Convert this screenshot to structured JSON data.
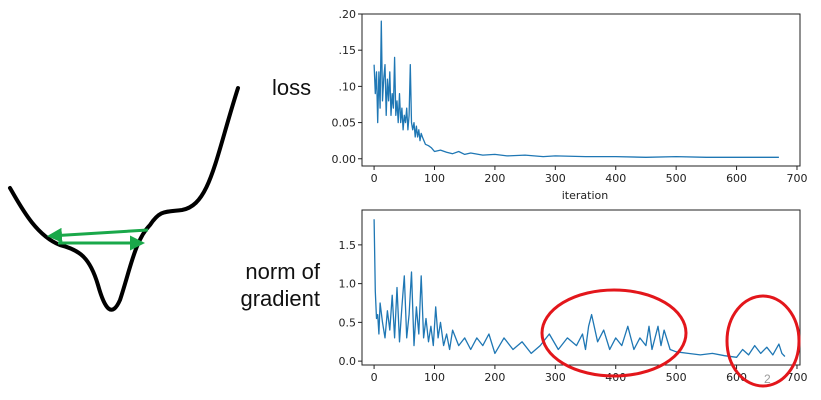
{
  "labels": {
    "loss": "loss",
    "norm_line1": "norm of",
    "norm_line2": "gradient",
    "slide_number": "2"
  },
  "colors": {
    "series": "#1f77b4",
    "highlight": "#e3161b",
    "arrows": "#1aa84a",
    "curve": "#000000"
  },
  "diagram": {
    "shape": "loss-landscape-valley",
    "arrows": [
      "left-arrow",
      "right-arrow"
    ]
  },
  "chart_data": [
    {
      "type": "line",
      "title": "",
      "xlabel": "iteration",
      "ylabel": "",
      "xlim": [
        -20,
        705
      ],
      "ylim": [
        -0.01,
        0.2
      ],
      "xticks": [
        0,
        100,
        200,
        300,
        400,
        500,
        600,
        700
      ],
      "yticks": [
        0.0,
        0.05,
        0.1,
        0.15,
        0.2
      ],
      "ytick_labels": [
        "0.00",
        "0.05",
        ".10",
        ".15",
        ".20"
      ],
      "grid": false,
      "series": [
        {
          "x": [
            0,
            2,
            4,
            6,
            8,
            10,
            12,
            14,
            16,
            18,
            20,
            22,
            24,
            26,
            28,
            30,
            32,
            34,
            36,
            38,
            40,
            42,
            44,
            46,
            48,
            50,
            52,
            54,
            56,
            58,
            60,
            62,
            64,
            66,
            68,
            70,
            72,
            74,
            76,
            78,
            80,
            85,
            90,
            95,
            100,
            110,
            120,
            130,
            140,
            150,
            160,
            180,
            200,
            220,
            250,
            280,
            300,
            350,
            400,
            450,
            500,
            550,
            600,
            650,
            670
          ],
          "y": [
            0.13,
            0.09,
            0.12,
            0.05,
            0.12,
            0.07,
            0.19,
            0.08,
            0.11,
            0.13,
            0.06,
            0.11,
            0.08,
            0.12,
            0.06,
            0.09,
            0.07,
            0.14,
            0.06,
            0.08,
            0.05,
            0.09,
            0.05,
            0.07,
            0.04,
            0.06,
            0.05,
            0.07,
            0.04,
            0.06,
            0.13,
            0.05,
            0.04,
            0.05,
            0.03,
            0.045,
            0.03,
            0.04,
            0.025,
            0.035,
            0.03,
            0.02,
            0.018,
            0.015,
            0.01,
            0.012,
            0.009,
            0.007,
            0.01,
            0.006,
            0.008,
            0.005,
            0.006,
            0.004,
            0.005,
            0.003,
            0.004,
            0.003,
            0.003,
            0.002,
            0.003,
            0.002,
            0.002,
            0.002,
            0.002
          ]
        }
      ]
    },
    {
      "type": "line",
      "title": "",
      "xlabel": "",
      "ylabel": "",
      "xlim": [
        -20,
        705
      ],
      "ylim": [
        -0.05,
        1.95
      ],
      "xticks": [
        0,
        100,
        200,
        300,
        400,
        500,
        600,
        700
      ],
      "yticks": [
        0.0,
        0.5,
        1.0,
        1.5
      ],
      "ytick_labels": [
        "0.0",
        "0.5",
        "1.0",
        "1.5"
      ],
      "grid": false,
      "series": [
        {
          "x": [
            0,
            2,
            4,
            6,
            8,
            10,
            14,
            18,
            22,
            26,
            30,
            34,
            38,
            42,
            46,
            50,
            54,
            58,
            62,
            66,
            70,
            74,
            78,
            82,
            86,
            90,
            94,
            98,
            102,
            106,
            110,
            115,
            120,
            125,
            130,
            140,
            150,
            160,
            170,
            180,
            190,
            200,
            215,
            230,
            245,
            260,
            275,
            290,
            305,
            320,
            335,
            345,
            350,
            355,
            360,
            370,
            380,
            390,
            400,
            410,
            420,
            430,
            440,
            450,
            455,
            460,
            470,
            475,
            480,
            490,
            500,
            520,
            540,
            560,
            580,
            600,
            610,
            620,
            630,
            640,
            650,
            660,
            670,
            675,
            680
          ],
          "y": [
            1.83,
            0.9,
            0.55,
            0.6,
            0.35,
            0.75,
            0.5,
            0.3,
            0.65,
            0.4,
            0.85,
            0.3,
            0.95,
            0.25,
            0.7,
            1.1,
            0.3,
            0.6,
            1.15,
            0.2,
            0.7,
            0.35,
            1.1,
            0.3,
            0.55,
            0.25,
            0.45,
            0.2,
            0.7,
            0.3,
            0.5,
            0.2,
            0.35,
            0.15,
            0.4,
            0.2,
            0.3,
            0.15,
            0.3,
            0.2,
            0.35,
            0.1,
            0.3,
            0.15,
            0.25,
            0.1,
            0.2,
            0.35,
            0.15,
            0.3,
            0.2,
            0.35,
            0.15,
            0.45,
            0.6,
            0.25,
            0.4,
            0.15,
            0.3,
            0.2,
            0.45,
            0.15,
            0.3,
            0.2,
            0.45,
            0.15,
            0.45,
            0.2,
            0.4,
            0.15,
            0.12,
            0.1,
            0.08,
            0.1,
            0.07,
            0.05,
            0.15,
            0.08,
            0.2,
            0.1,
            0.18,
            0.08,
            0.22,
            0.1,
            0.06
          ]
        }
      ]
    }
  ]
}
